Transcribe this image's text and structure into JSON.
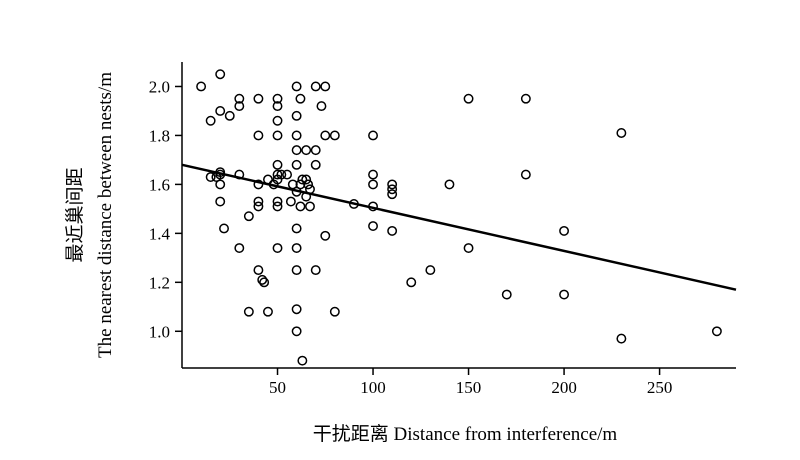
{
  "chart_data": {
    "type": "scatter",
    "xlabel": "干扰距离 Distance from interference/m",
    "ylabel_line1": "最近巢间距",
    "ylabel_line2": "The nearest distance between nests/m",
    "xlim": [
      0,
      290
    ],
    "ylim": [
      0.85,
      2.1
    ],
    "x_ticks": [
      50,
      100,
      150,
      200,
      250
    ],
    "y_ticks": [
      1.0,
      1.2,
      1.4,
      1.6,
      1.8,
      2.0
    ],
    "y_tick_labels": [
      "1.0",
      "1.2",
      "1.4",
      "1.6",
      "1.8",
      "2.0"
    ],
    "grid": false,
    "marker": "open-circle",
    "trendline": {
      "x": [
        0,
        290
      ],
      "y": [
        1.68,
        1.17
      ]
    },
    "points": [
      [
        10,
        2.0
      ],
      [
        20,
        2.05
      ],
      [
        30,
        1.95
      ],
      [
        30,
        1.92
      ],
      [
        40,
        1.95
      ],
      [
        50,
        1.95
      ],
      [
        50,
        1.92
      ],
      [
        60,
        2.0
      ],
      [
        62,
        1.95
      ],
      [
        70,
        2.0
      ],
      [
        75,
        2.0
      ],
      [
        73,
        1.92
      ],
      [
        15,
        1.86
      ],
      [
        20,
        1.9
      ],
      [
        25,
        1.88
      ],
      [
        40,
        1.8
      ],
      [
        50,
        1.86
      ],
      [
        50,
        1.8
      ],
      [
        60,
        1.88
      ],
      [
        60,
        1.8
      ],
      [
        75,
        1.8
      ],
      [
        80,
        1.8
      ],
      [
        100,
        1.8
      ],
      [
        60,
        1.74
      ],
      [
        65,
        1.74
      ],
      [
        70,
        1.74
      ],
      [
        50,
        1.68
      ],
      [
        60,
        1.68
      ],
      [
        70,
        1.68
      ],
      [
        100,
        1.64
      ],
      [
        110,
        1.6
      ],
      [
        110,
        1.58
      ],
      [
        110,
        1.56
      ],
      [
        15,
        1.63
      ],
      [
        18,
        1.63
      ],
      [
        20,
        1.64
      ],
      [
        20,
        1.65
      ],
      [
        30,
        1.64
      ],
      [
        40,
        1.6
      ],
      [
        45,
        1.62
      ],
      [
        48,
        1.6
      ],
      [
        50,
        1.64
      ],
      [
        50,
        1.62
      ],
      [
        52,
        1.64
      ],
      [
        55,
        1.64
      ],
      [
        58,
        1.6
      ],
      [
        62,
        1.6
      ],
      [
        63,
        1.62
      ],
      [
        65,
        1.62
      ],
      [
        66,
        1.6
      ],
      [
        67,
        1.58
      ],
      [
        60,
        1.57
      ],
      [
        65,
        1.55
      ],
      [
        100,
        1.6
      ],
      [
        140,
        1.6
      ],
      [
        180,
        1.64
      ],
      [
        20,
        1.6
      ],
      [
        20,
        1.53
      ],
      [
        40,
        1.53
      ],
      [
        40,
        1.51
      ],
      [
        50,
        1.53
      ],
      [
        50,
        1.51
      ],
      [
        57,
        1.53
      ],
      [
        62,
        1.51
      ],
      [
        67,
        1.51
      ],
      [
        90,
        1.52
      ],
      [
        100,
        1.51
      ],
      [
        35,
        1.47
      ],
      [
        22,
        1.42
      ],
      [
        60,
        1.42
      ],
      [
        75,
        1.39
      ],
      [
        100,
        1.43
      ],
      [
        110,
        1.41
      ],
      [
        200,
        1.41
      ],
      [
        30,
        1.34
      ],
      [
        50,
        1.34
      ],
      [
        60,
        1.34
      ],
      [
        150,
        1.34
      ],
      [
        40,
        1.25
      ],
      [
        42,
        1.21
      ],
      [
        43,
        1.2
      ],
      [
        60,
        1.25
      ],
      [
        70,
        1.25
      ],
      [
        120,
        1.2
      ],
      [
        130,
        1.25
      ],
      [
        170,
        1.15
      ],
      [
        200,
        1.15
      ],
      [
        35,
        1.08
      ],
      [
        45,
        1.08
      ],
      [
        60,
        1.09
      ],
      [
        80,
        1.08
      ],
      [
        60,
        1.0
      ],
      [
        63,
        0.88
      ],
      [
        230,
        0.97
      ],
      [
        280,
        1.0
      ],
      [
        150,
        1.95
      ],
      [
        180,
        1.95
      ],
      [
        230,
        1.81
      ]
    ]
  }
}
